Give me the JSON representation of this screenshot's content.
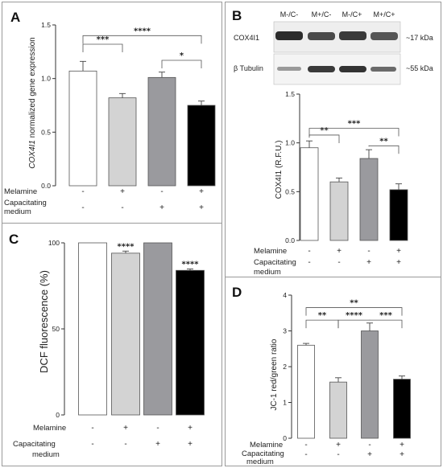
{
  "panels": {
    "A": {
      "letter": "A",
      "ylabel_italic": "COX4I1",
      "ylabel_rest": " normalized gene expression",
      "condition_rows": [
        "Melamine",
        "Capacitating",
        "medium"
      ]
    },
    "B": {
      "letter": "B",
      "lane_labels": [
        "M-/C-",
        "M+/C-",
        "M-/C+",
        "M+/C+"
      ],
      "band_labels": [
        "COX4I1",
        "β Tubulin"
      ],
      "kda_labels": [
        "~17 kDa",
        "~55 kDa"
      ],
      "ylabel": "COX4I1 (R.F.U.)",
      "condition_rows": [
        "Melamine",
        "Capacitating",
        "medium"
      ]
    },
    "C": {
      "letter": "C",
      "ylabel": "DCF fluorescence (%)",
      "condition_rows": [
        "Melamine",
        "Capacitating",
        "medium"
      ]
    },
    "D": {
      "letter": "D",
      "ylabel": "JC-1 red/green ratio",
      "condition_rows": [
        "Melamine",
        "Capacitating",
        "medium"
      ]
    }
  },
  "conditions": {
    "melamine": [
      "-",
      "+",
      "-",
      "+"
    ],
    "capacitating": [
      "-",
      "-",
      "+",
      "+"
    ]
  },
  "chart_data": [
    {
      "panel": "A",
      "type": "bar",
      "categories": [
        "1",
        "2",
        "3",
        "4"
      ],
      "values": [
        1.07,
        0.82,
        1.01,
        0.75
      ],
      "errors": [
        0.09,
        0.04,
        0.05,
        0.04
      ],
      "colors": [
        "#ffffff",
        "#d3d3d3",
        "#9a9a9e",
        "#000000"
      ],
      "ylim": [
        0,
        1.5
      ],
      "yticks": [
        "0.0",
        "0.5",
        "1.0",
        "1.5"
      ],
      "ytick_values": [
        0,
        0.5,
        1.0,
        1.5
      ],
      "brackets": [
        {
          "from": 0,
          "to": 1,
          "label": "***",
          "level": 1.32
        },
        {
          "from": 0,
          "to": 3,
          "label": "****",
          "level": 1.4
        },
        {
          "from": 2,
          "to": 3,
          "label": "*",
          "level": 1.17
        }
      ]
    },
    {
      "panel": "B",
      "type": "bar",
      "categories": [
        "M-/C-",
        "M+/C-",
        "M-/C+",
        "M+/C+"
      ],
      "values": [
        0.95,
        0.6,
        0.84,
        0.52
      ],
      "errors": [
        0.07,
        0.04,
        0.09,
        0.06
      ],
      "colors": [
        "#ffffff",
        "#d3d3d3",
        "#9a9a9e",
        "#000000"
      ],
      "ylim": [
        0,
        1.5
      ],
      "yticks": [
        "0.0",
        "0.5",
        "1.0",
        "1.5"
      ],
      "ytick_values": [
        0,
        0.5,
        1.0,
        1.5
      ],
      "brackets": [
        {
          "from": 0,
          "to": 1,
          "label": "**",
          "level": 1.08
        },
        {
          "from": 0,
          "to": 3,
          "label": "***",
          "level": 1.15
        },
        {
          "from": 2,
          "to": 3,
          "label": "**",
          "level": 0.97
        }
      ]
    },
    {
      "panel": "C",
      "type": "bar",
      "categories": [
        "1",
        "2",
        "3",
        "4"
      ],
      "values": [
        100,
        94,
        100,
        84
      ],
      "errors": [
        0,
        1.2,
        0,
        0.8
      ],
      "colors": [
        "#ffffff",
        "#d3d3d3",
        "#9a9a9e",
        "#000000"
      ],
      "ylim": [
        0,
        100
      ],
      "yticks": [
        "0",
        "50",
        "100"
      ],
      "ytick_values": [
        0,
        50,
        100
      ],
      "annotations": [
        {
          "bar": 1,
          "label": "****"
        },
        {
          "bar": 3,
          "label": "****"
        }
      ]
    },
    {
      "panel": "D",
      "type": "bar",
      "categories": [
        "1",
        "2",
        "3",
        "4"
      ],
      "values": [
        2.6,
        1.57,
        3.0,
        1.65
      ],
      "errors": [
        0.05,
        0.12,
        0.22,
        0.09
      ],
      "colors": [
        "#ffffff",
        "#d3d3d3",
        "#9a9a9e",
        "#000000"
      ],
      "ylim": [
        0,
        4
      ],
      "yticks": [
        "0",
        "1",
        "2",
        "3",
        "4"
      ],
      "ytick_values": [
        0,
        1,
        2,
        3,
        4
      ],
      "brackets": [
        {
          "from": 0,
          "to": 3,
          "label": "**",
          "level": 3.65
        },
        {
          "from": 0,
          "to": 1,
          "label": "**",
          "level": 3.3
        },
        {
          "from": 1,
          "to": 2,
          "label": "****",
          "level": 3.3
        },
        {
          "from": 2,
          "to": 3,
          "label": "***",
          "level": 3.3
        }
      ]
    }
  ]
}
